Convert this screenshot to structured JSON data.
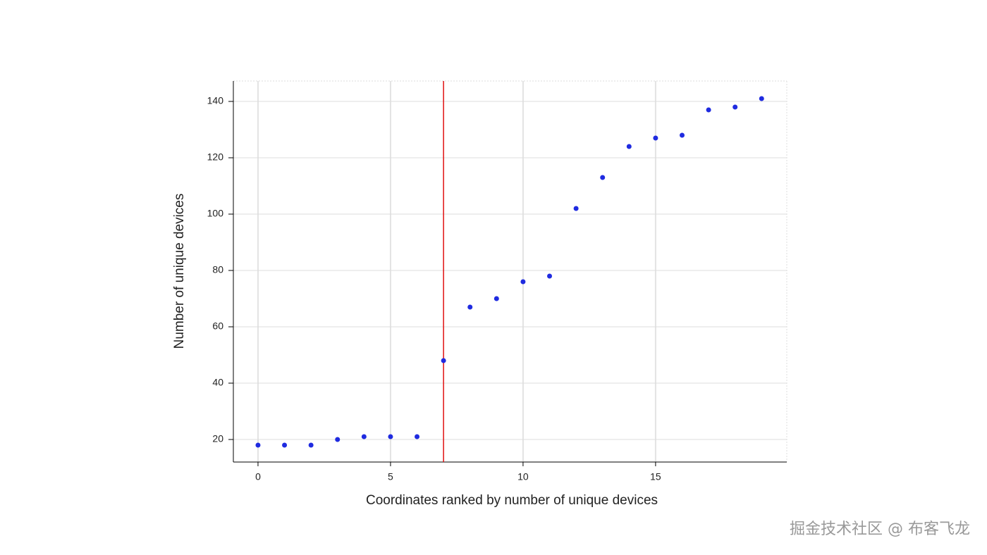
{
  "chart_data": {
    "type": "scatter",
    "xlabel": "Coordinates ranked by number of unique devices",
    "ylabel": "Number of unique devices",
    "x": [
      0,
      1,
      2,
      3,
      4,
      5,
      6,
      7,
      8,
      9,
      10,
      11,
      12,
      13,
      14,
      15,
      16,
      17,
      18,
      19
    ],
    "values": [
      18,
      18,
      18,
      20,
      21,
      21,
      21,
      48,
      67,
      70,
      76,
      78,
      102,
      113,
      124,
      127,
      128,
      137,
      138,
      141
    ],
    "color": "#1f2be0",
    "vline": 7,
    "vline_color": "#e01010",
    "xlim": [
      -0.93,
      19.95
    ],
    "xticks": [
      0,
      5,
      10,
      15
    ],
    "ylim": [
      12,
      147.25
    ],
    "yticks": [
      20,
      40,
      60,
      80,
      100,
      120,
      140
    ],
    "grid": true
  },
  "watermark": "掘金技术社区 @ 布客飞龙"
}
